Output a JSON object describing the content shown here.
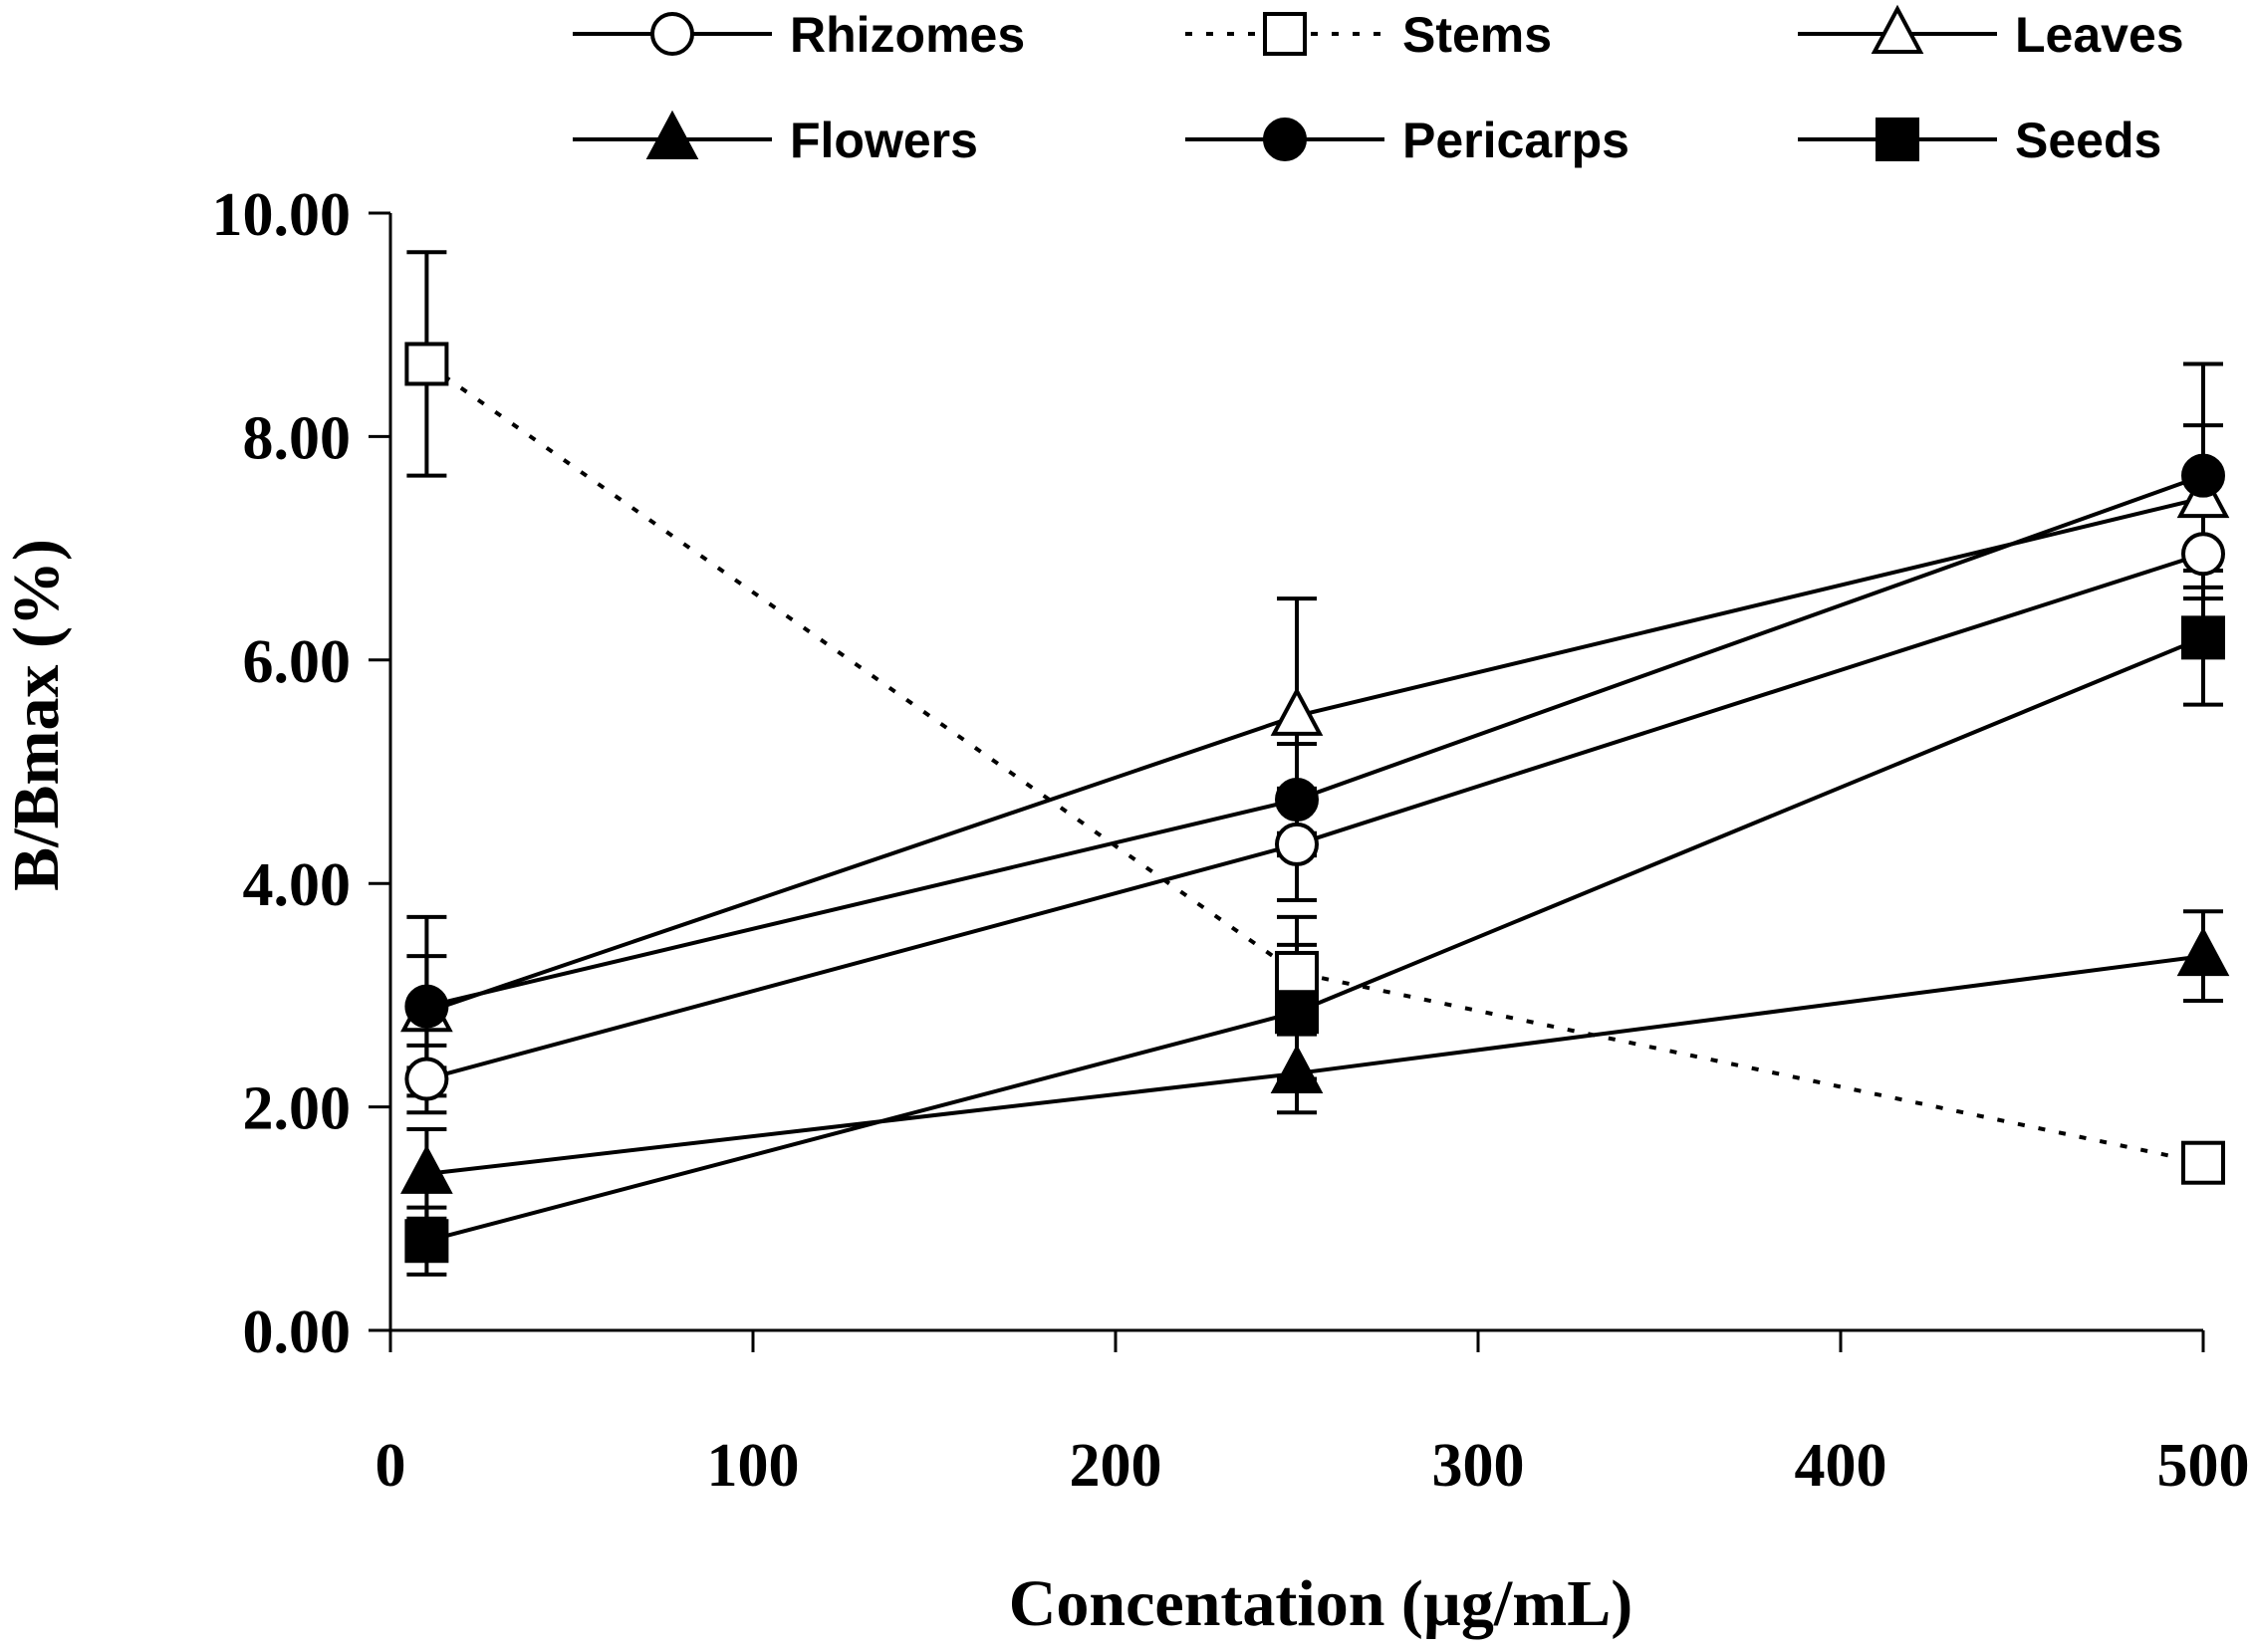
{
  "chart_data": {
    "type": "line",
    "xlabel": "Concentation (µg/mL)",
    "ylabel": "B/Bmax (%)",
    "xlim": [
      0,
      500
    ],
    "ylim": [
      0,
      10
    ],
    "xticks": [
      0,
      100,
      200,
      300,
      400,
      500
    ],
    "yticks": [
      0,
      2,
      4,
      6,
      8,
      10
    ],
    "xtick_labels": [
      "0",
      "100",
      "200",
      "300",
      "400",
      "500"
    ],
    "ytick_labels": [
      "0.00",
      "2.00",
      "4.00",
      "6.00",
      "8.00",
      "10.00"
    ],
    "grid": false,
    "legend_position": "top",
    "x": [
      10,
      250,
      500
    ],
    "series": [
      {
        "name": "Rhizomes",
        "marker": "circle-open",
        "line": "solid",
        "values": [
          2.25,
          4.35,
          6.95
        ],
        "error": [
          0.3,
          0.5,
          0.4
        ]
      },
      {
        "name": "Stems",
        "marker": "square-open",
        "line": "dotted",
        "values": [
          8.65,
          3.2,
          1.5
        ],
        "error": [
          1.0,
          0.5,
          0.15
        ]
      },
      {
        "name": "Leaves",
        "marker": "triangle-open",
        "line": "solid",
        "values": [
          2.85,
          5.5,
          7.45
        ],
        "error": [
          0.5,
          1.05,
          0.65
        ]
      },
      {
        "name": "Flowers",
        "marker": "triangle-filled",
        "line": "solid",
        "values": [
          1.4,
          2.3,
          3.35
        ],
        "error": [
          0.4,
          0.35,
          0.4
        ]
      },
      {
        "name": "Pericarps",
        "marker": "circle-filled",
        "line": "solid",
        "values": [
          2.9,
          4.75,
          7.65
        ],
        "error": [
          0.8,
          0.5,
          1.0
        ]
      },
      {
        "name": "Seeds",
        "marker": "square-filled",
        "line": "solid",
        "values": [
          0.8,
          2.85,
          6.2
        ],
        "error": [
          0.3,
          0.6,
          0.6
        ]
      }
    ]
  }
}
